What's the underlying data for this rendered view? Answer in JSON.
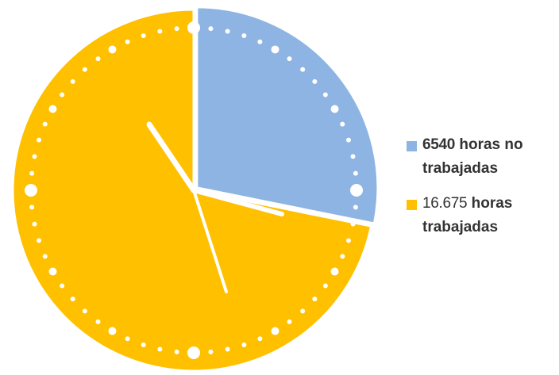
{
  "chart_data": {
    "type": "pie",
    "title": "",
    "series": [
      {
        "value_label": "6540",
        "label": "horas no trabajadas",
        "value": 6540,
        "color": "#8EB4E3"
      },
      {
        "value_label": "16.675",
        "label": "horas trabajadas",
        "value": 16675,
        "color": "#FFC000"
      }
    ],
    "legend_position": "right",
    "decoration": "clock face with white dots and clock hands"
  },
  "legend": {
    "items": [
      {
        "value": "6540",
        "text": "horas no trabajadas",
        "color": "#8EB4E3"
      },
      {
        "value": "16.675",
        "text": "horas trabajadas",
        "color": "#FFC000"
      }
    ]
  }
}
